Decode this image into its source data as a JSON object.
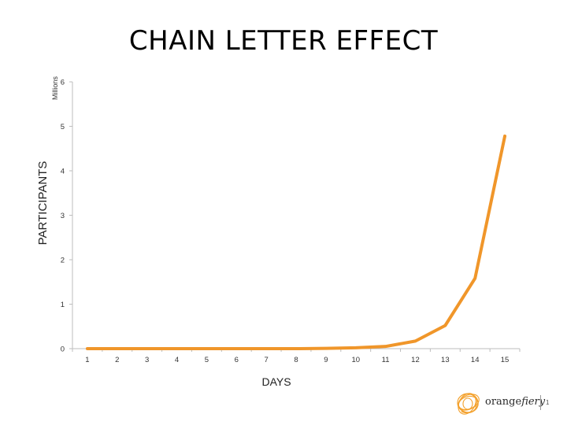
{
  "slide": {
    "title": "CHAIN LETTER EFFECT",
    "page_number": "1",
    "brand": {
      "name_part1": "orange",
      "name_part2": "fiery",
      "accent_color": "#f39c22"
    }
  },
  "chart_data": {
    "type": "line",
    "title": "CHAIN LETTER EFFECT",
    "xlabel": "DAYS",
    "ylabel": "PARTICIPANTS",
    "y_unit_label": "Millions",
    "categories": [
      "1",
      "2",
      "3",
      "4",
      "5",
      "6",
      "7",
      "8",
      "9",
      "10",
      "11",
      "12",
      "13",
      "14",
      "15"
    ],
    "series": [
      {
        "color": "#f0962a",
        "values": [
          0,
          0,
          0,
          0,
          0,
          0,
          0,
          0,
          0.006,
          0.02,
          0.05,
          0.17,
          0.52,
          1.58,
          4.78
        ]
      }
    ],
    "ylim": [
      0,
      6
    ],
    "yticks": [
      "0",
      "1",
      "2",
      "3",
      "4",
      "5",
      "6"
    ],
    "grid": false,
    "legend": "none"
  }
}
